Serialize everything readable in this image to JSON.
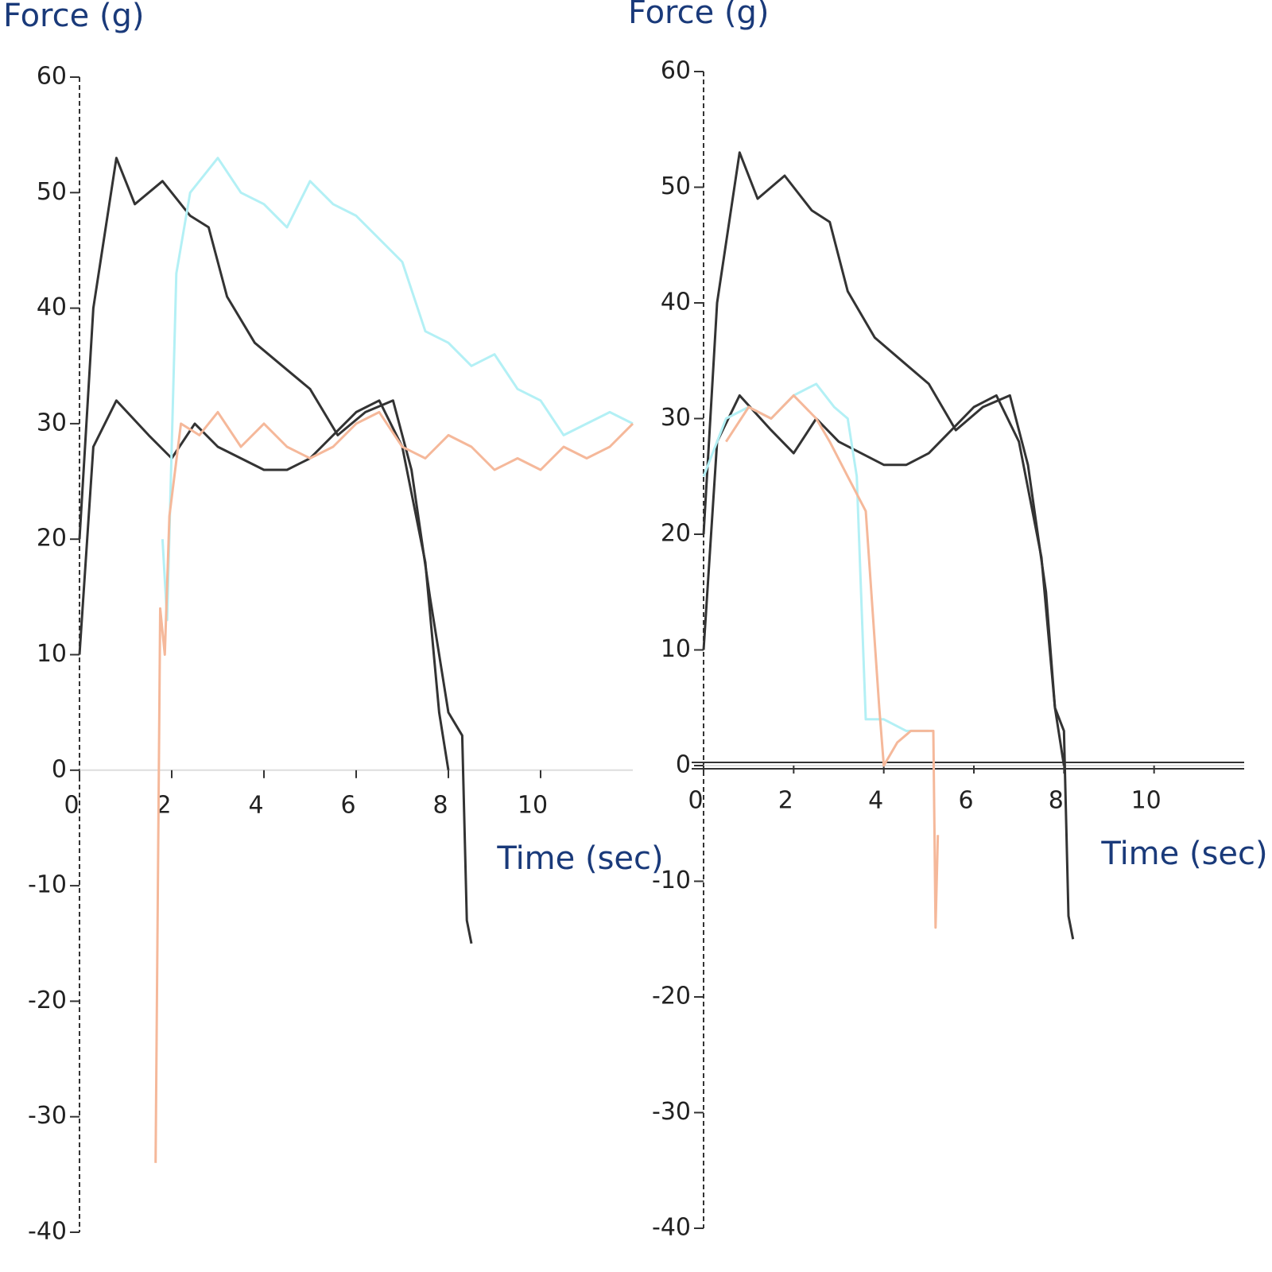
{
  "chart_data": [
    {
      "type": "line",
      "ylabel": "Force (g)",
      "xlabel": "Time (sec)",
      "xlim": [
        0,
        12
      ],
      "ylim": [
        -40,
        60
      ],
      "xticks": [
        0,
        2,
        4,
        6,
        8,
        10
      ],
      "yticks": [
        -40,
        -30,
        -20,
        -10,
        0,
        10,
        20,
        30,
        40,
        50,
        60
      ],
      "series": [
        {
          "color": "#333333",
          "x": [
            0,
            0.3,
            0.8,
            1.2,
            1.8,
            2.4,
            2.8,
            3.2,
            3.8,
            4.4,
            5,
            5.6,
            6.2,
            6.8,
            7.2,
            7.6,
            8,
            8.3,
            8.4,
            8.5
          ],
          "values": [
            20,
            40,
            53,
            49,
            51,
            48,
            47,
            41,
            37,
            35,
            33,
            29,
            31,
            32,
            26,
            15,
            5,
            3,
            -13,
            -15
          ]
        },
        {
          "color": "#333333",
          "x": [
            0,
            0.3,
            0.8,
            1.5,
            2,
            2.5,
            3,
            4,
            4.5,
            5,
            5.5,
            6,
            6.5,
            7,
            7.5,
            7.8,
            8
          ],
          "values": [
            10,
            28,
            32,
            29,
            27,
            30,
            28,
            26,
            26,
            27,
            29,
            31,
            32,
            28,
            18,
            5,
            0
          ]
        },
        {
          "color": "#b3f0f5",
          "x": [
            1.8,
            1.9,
            2.1,
            2.4,
            3,
            3.5,
            4,
            4.5,
            5,
            5.5,
            6,
            6.5,
            7,
            7.5,
            8,
            8.5,
            9,
            9.5,
            10,
            10.5,
            11,
            11.5,
            12
          ],
          "values": [
            20,
            13,
            43,
            50,
            53,
            50,
            49,
            47,
            51,
            49,
            48,
            46,
            44,
            38,
            37,
            35,
            36,
            33,
            32,
            29,
            30,
            31,
            30
          ]
        },
        {
          "color": "#f5b89a",
          "x": [
            1.65,
            1.75,
            1.85,
            1.95,
            2.2,
            2.6,
            3,
            3.5,
            4,
            4.5,
            5,
            5.5,
            6,
            6.5,
            7,
            7.5,
            8,
            8.5,
            9,
            9.5,
            10,
            10.5,
            11,
            11.5,
            12
          ],
          "values": [
            -34,
            14,
            10,
            22,
            30,
            29,
            31,
            28,
            30,
            28,
            27,
            28,
            30,
            31,
            28,
            27,
            29,
            28,
            26,
            27,
            26,
            28,
            27,
            28,
            30
          ]
        }
      ]
    },
    {
      "type": "line",
      "ylabel": "Force (g)",
      "xlabel": "Time (sec)",
      "zero_line": true,
      "xlim": [
        0,
        12
      ],
      "ylim": [
        -40,
        60
      ],
      "xticks": [
        0,
        2,
        4,
        6,
        8,
        10
      ],
      "yticks": [
        -40,
        -30,
        -20,
        -10,
        0,
        10,
        20,
        30,
        40,
        50,
        60
      ],
      "series": [
        {
          "color": "#333333",
          "x": [
            0,
            0.3,
            0.8,
            1.2,
            1.8,
            2.4,
            2.8,
            3.2,
            3.8,
            4.4,
            5,
            5.6,
            6.2,
            6.8,
            7.2,
            7.6,
            7.8,
            8,
            8.1,
            8.2
          ],
          "values": [
            20,
            40,
            53,
            49,
            51,
            48,
            47,
            41,
            37,
            35,
            33,
            29,
            31,
            32,
            26,
            15,
            5,
            3,
            -13,
            -15
          ]
        },
        {
          "color": "#333333",
          "x": [
            0,
            0.3,
            0.8,
            1.5,
            2,
            2.5,
            3,
            4,
            4.5,
            5,
            5.5,
            6,
            6.5,
            7,
            7.5,
            7.8,
            8
          ],
          "values": [
            10,
            28,
            32,
            29,
            27,
            30,
            28,
            26,
            26,
            27,
            29,
            31,
            32,
            28,
            18,
            5,
            0
          ]
        },
        {
          "color": "#b3f0f5",
          "x": [
            0,
            0.5,
            1,
            1.5,
            2,
            2.5,
            2.9,
            3.2,
            3.4,
            3.6,
            4,
            4.5,
            5
          ],
          "values": [
            25,
            30,
            31,
            30,
            32,
            33,
            31,
            30,
            25,
            4,
            4,
            3,
            3
          ]
        },
        {
          "color": "#f5b89a",
          "x": [
            0.5,
            1,
            1.5,
            2,
            2.5,
            2.8,
            3.2,
            3.6,
            3.9,
            4,
            4.3,
            4.6,
            5,
            5.1,
            5.15,
            5.2
          ],
          "values": [
            28,
            31,
            30,
            32,
            30,
            28,
            25,
            22,
            5,
            0,
            2,
            3,
            3,
            3,
            -14,
            -6
          ]
        }
      ]
    }
  ]
}
